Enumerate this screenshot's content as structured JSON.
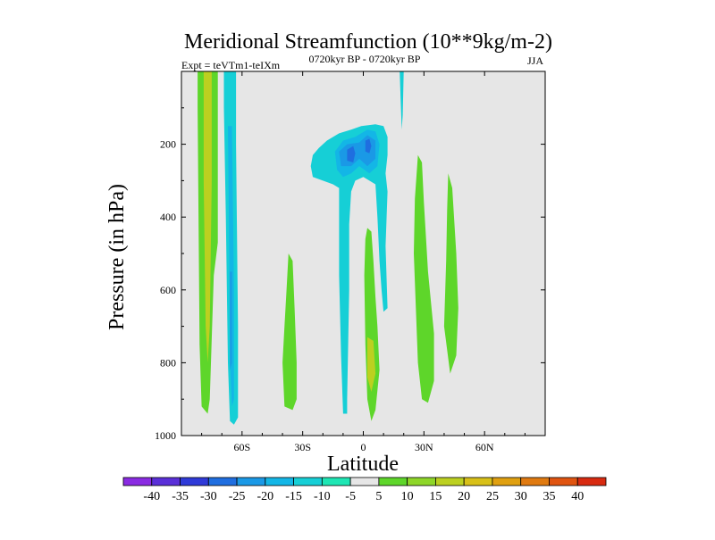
{
  "chart_data": {
    "type": "contour",
    "title": "Meridional Streamfunction (10**9kg/m-2)",
    "subtitle_left": "Expt = teVTm1-teIXm",
    "subtitle_center": "0720kyr BP - 0720kyr BP",
    "subtitle_right": "JJA",
    "xlabel": "Latitude",
    "ylabel": "Pressure (in hPa)",
    "xlim": [
      -90,
      90
    ],
    "ylim": [
      1000,
      0
    ],
    "x_ticks": [
      {
        "value": -60,
        "label": "60S"
      },
      {
        "value": -30,
        "label": "30S"
      },
      {
        "value": 0,
        "label": "0"
      },
      {
        "value": 30,
        "label": "30N"
      },
      {
        "value": 60,
        "label": "60N"
      }
    ],
    "y_ticks": [
      {
        "value": 200,
        "label": "200"
      },
      {
        "value": 400,
        "label": "400"
      },
      {
        "value": 600,
        "label": "600"
      },
      {
        "value": 800,
        "label": "800"
      },
      {
        "value": 1000,
        "label": "1000"
      }
    ],
    "background_color": "#e6e6e6",
    "colorbar": {
      "levels": [
        -40,
        -35,
        -30,
        -25,
        -20,
        -15,
        -10,
        -5,
        5,
        10,
        15,
        20,
        25,
        30,
        35,
        40
      ],
      "labels": [
        "-40",
        "-35",
        "-30",
        "-25",
        "-20",
        "-15",
        "-10",
        "-5",
        "5",
        "10",
        "15",
        "20",
        "25",
        "30",
        "35",
        "40"
      ],
      "colors": [
        "#8a2be2",
        "#5a2fd8",
        "#2f3ad8",
        "#1f6ee0",
        "#1a99e6",
        "#13b6e6",
        "#16cfd6",
        "#1ee6b4",
        "#e6e6e6",
        "#5ed62a",
        "#8ed628",
        "#bcd020",
        "#d8c018",
        "#e0a010",
        "#e07a10",
        "#e05410",
        "#d82a10"
      ]
    },
    "regions": [
      {
        "name": "band-70s-positive",
        "level_index": 9,
        "points": [
          [
            -82,
            0
          ],
          [
            -72,
            0
          ],
          [
            -72,
            470
          ],
          [
            -74,
            560
          ],
          [
            -76,
            900
          ],
          [
            -77,
            940
          ],
          [
            -80,
            920
          ],
          [
            -81,
            750
          ],
          [
            -82,
            100
          ]
        ]
      },
      {
        "name": "band-70s-core",
        "level_index": 11,
        "points": [
          [
            -79,
            0
          ],
          [
            -75,
            0
          ],
          [
            -75,
            300
          ],
          [
            -76,
            700
          ],
          [
            -77,
            800
          ],
          [
            -78,
            700
          ],
          [
            -79,
            300
          ]
        ]
      },
      {
        "name": "band-60s-negative",
        "level_index": 6,
        "points": [
          [
            -69,
            0
          ],
          [
            -63,
            0
          ],
          [
            -63,
            200
          ],
          [
            -62,
            700
          ],
          [
            -62,
            950
          ],
          [
            -64,
            970
          ],
          [
            -66,
            960
          ],
          [
            -67,
            800
          ],
          [
            -68,
            400
          ],
          [
            -69,
            100
          ]
        ]
      },
      {
        "name": "band-60s-core",
        "level_index": 5,
        "points": [
          [
            -67,
            150
          ],
          [
            -65,
            150
          ],
          [
            -64,
            600
          ],
          [
            -64,
            900
          ],
          [
            -65,
            920
          ],
          [
            -66,
            800
          ],
          [
            -66.5,
            400
          ]
        ]
      },
      {
        "name": "band-60s-core2",
        "level_index": 4,
        "points": [
          [
            -66,
            550
          ],
          [
            -65,
            550
          ],
          [
            -65,
            800
          ],
          [
            -66,
            820
          ]
        ]
      },
      {
        "name": "blob-38s-positive",
        "level_index": 9,
        "points": [
          [
            -37,
            500
          ],
          [
            -35,
            520
          ],
          [
            -34,
            650
          ],
          [
            -33,
            800
          ],
          [
            -33,
            900
          ],
          [
            -35,
            930
          ],
          [
            -39,
            920
          ],
          [
            -40,
            800
          ],
          [
            -39,
            700
          ],
          [
            -38,
            600
          ]
        ]
      },
      {
        "name": "upper-cell-negative",
        "level_index": 6,
        "points": [
          [
            -25,
            230
          ],
          [
            -22,
            210
          ],
          [
            -18,
            190
          ],
          [
            -12,
            170
          ],
          [
            -6,
            160
          ],
          [
            -1,
            150
          ],
          [
            6,
            145
          ],
          [
            10,
            150
          ],
          [
            12,
            180
          ],
          [
            12,
            230
          ],
          [
            11,
            280
          ],
          [
            12,
            330
          ],
          [
            11,
            480
          ],
          [
            12,
            650
          ],
          [
            10,
            660
          ],
          [
            9,
            600
          ],
          [
            8,
            520
          ],
          [
            7,
            400
          ],
          [
            6,
            310
          ],
          [
            3,
            300
          ],
          [
            0,
            290
          ],
          [
            -4,
            300
          ],
          [
            -6,
            330
          ],
          [
            -7,
            420
          ],
          [
            -7,
            600
          ],
          [
            -8,
            900
          ],
          [
            -8,
            940
          ],
          [
            -10,
            940
          ],
          [
            -11,
            780
          ],
          [
            -12,
            560
          ],
          [
            -12,
            380
          ],
          [
            -12,
            320
          ],
          [
            -15,
            310
          ],
          [
            -20,
            300
          ],
          [
            -25,
            290
          ],
          [
            -26,
            260
          ]
        ]
      },
      {
        "name": "upper-cell-inner",
        "level_index": 5,
        "points": [
          [
            -14,
            220
          ],
          [
            -10,
            190
          ],
          [
            -4,
            180
          ],
          [
            2,
            160
          ],
          [
            6,
            165
          ],
          [
            8,
            200
          ],
          [
            7,
            260
          ],
          [
            3,
            280
          ],
          [
            -2,
            260
          ],
          [
            -6,
            280
          ],
          [
            -10,
            290
          ],
          [
            -13,
            270
          ]
        ]
      },
      {
        "name": "upper-cell-inner2",
        "level_index": 4,
        "points": [
          [
            -12,
            220
          ],
          [
            -8,
            200
          ],
          [
            -2,
            195
          ],
          [
            2,
            175
          ],
          [
            6,
            190
          ],
          [
            6,
            240
          ],
          [
            2,
            260
          ],
          [
            -2,
            240
          ],
          [
            -6,
            260
          ],
          [
            -11,
            260
          ]
        ]
      },
      {
        "name": "upper-cell-core-a",
        "level_index": 3,
        "points": [
          [
            -8,
            215
          ],
          [
            -5,
            205
          ],
          [
            -4,
            225
          ],
          [
            -5,
            250
          ],
          [
            -8,
            245
          ]
        ]
      },
      {
        "name": "upper-cell-core-b",
        "level_index": 3,
        "points": [
          [
            1,
            190
          ],
          [
            3,
            185
          ],
          [
            4,
            205
          ],
          [
            3,
            225
          ],
          [
            1,
            220
          ]
        ]
      },
      {
        "name": "thread-20n-negative",
        "level_index": 6,
        "points": [
          [
            18,
            0
          ],
          [
            20,
            0
          ],
          [
            19.5,
            120
          ],
          [
            19,
            160
          ],
          [
            18.5,
            80
          ]
        ]
      },
      {
        "name": "blob-eq-positive",
        "level_index": 9,
        "points": [
          [
            2,
            430
          ],
          [
            4,
            440
          ],
          [
            5,
            520
          ],
          [
            6,
            620
          ],
          [
            7,
            700
          ],
          [
            8,
            820
          ],
          [
            6,
            930
          ],
          [
            4,
            960
          ],
          [
            2,
            900
          ],
          [
            1,
            750
          ],
          [
            0.5,
            560
          ],
          [
            1,
            460
          ]
        ]
      },
      {
        "name": "blob-eq-core",
        "level_index": 11,
        "points": [
          [
            2,
            730
          ],
          [
            5,
            740
          ],
          [
            6,
            830
          ],
          [
            4,
            880
          ],
          [
            2,
            840
          ]
        ]
      },
      {
        "name": "blob-28n-positive",
        "level_index": 9,
        "points": [
          [
            27,
            230
          ],
          [
            29,
            250
          ],
          [
            30,
            360
          ],
          [
            32,
            550
          ],
          [
            35,
            720
          ],
          [
            35,
            850
          ],
          [
            32,
            910
          ],
          [
            29,
            900
          ],
          [
            27,
            800
          ],
          [
            26,
            650
          ],
          [
            25,
            500
          ],
          [
            25.5,
            350
          ]
        ]
      },
      {
        "name": "blob-43n-positive",
        "level_index": 9,
        "points": [
          [
            42,
            280
          ],
          [
            44,
            320
          ],
          [
            46,
            500
          ],
          [
            47,
            650
          ],
          [
            46,
            780
          ],
          [
            43,
            830
          ],
          [
            40,
            700
          ],
          [
            41,
            520
          ],
          [
            41.5,
            380
          ]
        ]
      }
    ]
  }
}
